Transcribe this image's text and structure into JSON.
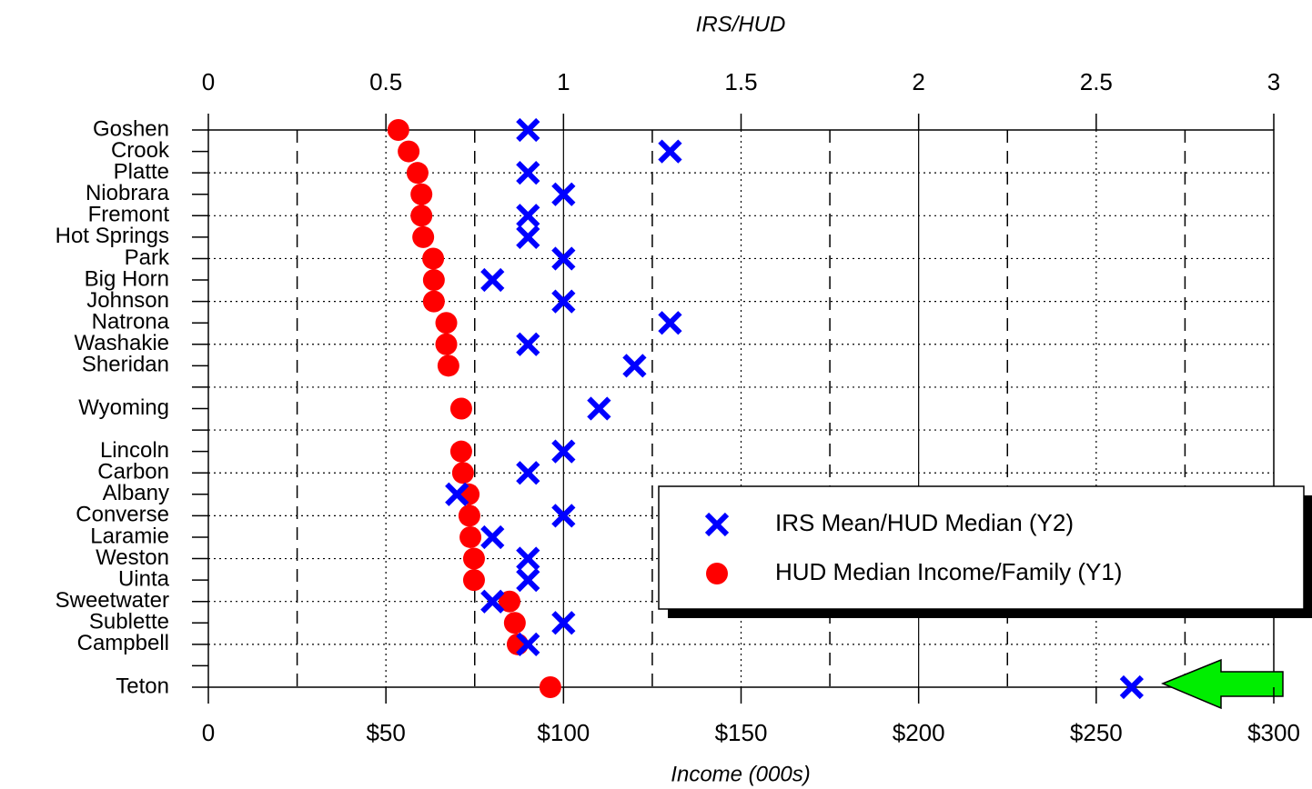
{
  "chart_data": {
    "type": "scatter",
    "xlabel": "Income (000s)",
    "x2label": "IRS/HUD",
    "categories": [
      "Goshen",
      "Crook",
      "Platte",
      "Niobrara",
      "Fremont",
      "Hot Springs",
      "Park",
      "Big Horn",
      "Johnson",
      "Natrona",
      "Washakie",
      "Sheridan",
      null,
      "Wyoming",
      null,
      "Lincoln",
      "Carbon",
      "Albany",
      "Converse",
      "Laramie",
      "Weston",
      "Uinta",
      "Sweetwater",
      "Sublette",
      "Campbell",
      null,
      "Teton"
    ],
    "series": [
      {
        "name": "IRS Mean/HUD Median (Y2)",
        "color": "#0000ff",
        "axis": "x2",
        "marker": "x",
        "values": [
          0.9,
          1.3,
          0.9,
          1.0,
          0.9,
          0.9,
          1.0,
          0.8,
          1.0,
          1.3,
          0.9,
          1.2,
          null,
          1.1,
          null,
          1.0,
          0.9,
          0.7,
          1.0,
          0.8,
          0.9,
          0.9,
          0.8,
          1.0,
          0.9,
          null,
          2.6
        ]
      },
      {
        "name": "HUD Median Income/Family (Y1)",
        "color": "#ff0000",
        "axis": "x",
        "marker": "circle",
        "values": [
          53.5,
          56.4,
          58.9,
          60,
          60,
          60.5,
          63.3,
          63.5,
          63.5,
          67,
          67,
          67.6,
          null,
          71.2,
          null,
          71.2,
          71.7,
          73.3,
          73.5,
          73.8,
          74.8,
          74.8,
          84.8,
          86.3,
          87.1,
          null,
          96.3
        ]
      }
    ],
    "xlim": [
      0,
      300
    ],
    "xticks": [
      0,
      {
        "value": 50,
        "label": "$50"
      },
      {
        "value": 100,
        "label": "$100"
      },
      {
        "value": 150,
        "label": "$150"
      },
      {
        "value": 200,
        "label": "$200"
      },
      {
        "value": 250,
        "label": "$250"
      },
      {
        "value": 300,
        "label": "$300"
      }
    ],
    "x2lim": [
      0,
      3
    ],
    "x2ticks": [
      0,
      0.5,
      1,
      1.5,
      2,
      2.5,
      3
    ],
    "grid": true,
    "legend": "lower right"
  }
}
